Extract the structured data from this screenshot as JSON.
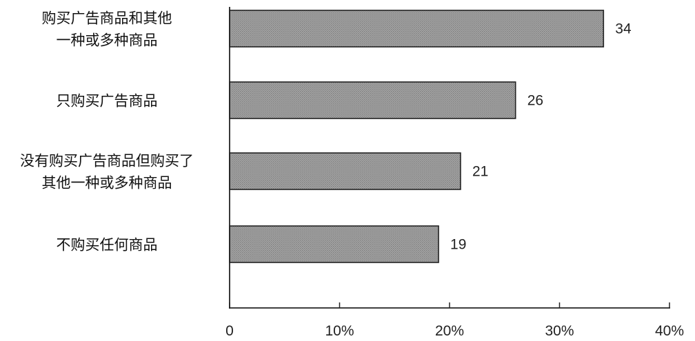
{
  "chart_data": {
    "type": "bar",
    "orientation": "horizontal",
    "categories": [
      [
        "购买广告商品和其他",
        "一种或多种商品"
      ],
      [
        "只购买广告商品"
      ],
      [
        "没有购买广告商品但购买了",
        "其他一种或多种商品"
      ],
      [
        "不购买任何商品"
      ]
    ],
    "values": [
      34,
      26,
      21,
      19
    ],
    "value_labels": [
      "34",
      "26",
      "21",
      "19"
    ],
    "xlim": [
      0,
      40
    ],
    "xticks": [
      0,
      10,
      20,
      30,
      40
    ],
    "xtick_labels": [
      "0",
      "10%",
      "20%",
      "30%",
      "40%"
    ],
    "title": "",
    "xlabel": "",
    "ylabel": "",
    "grid": false,
    "bar_color": "#9a9a9a",
    "edge_color": "#222222"
  }
}
